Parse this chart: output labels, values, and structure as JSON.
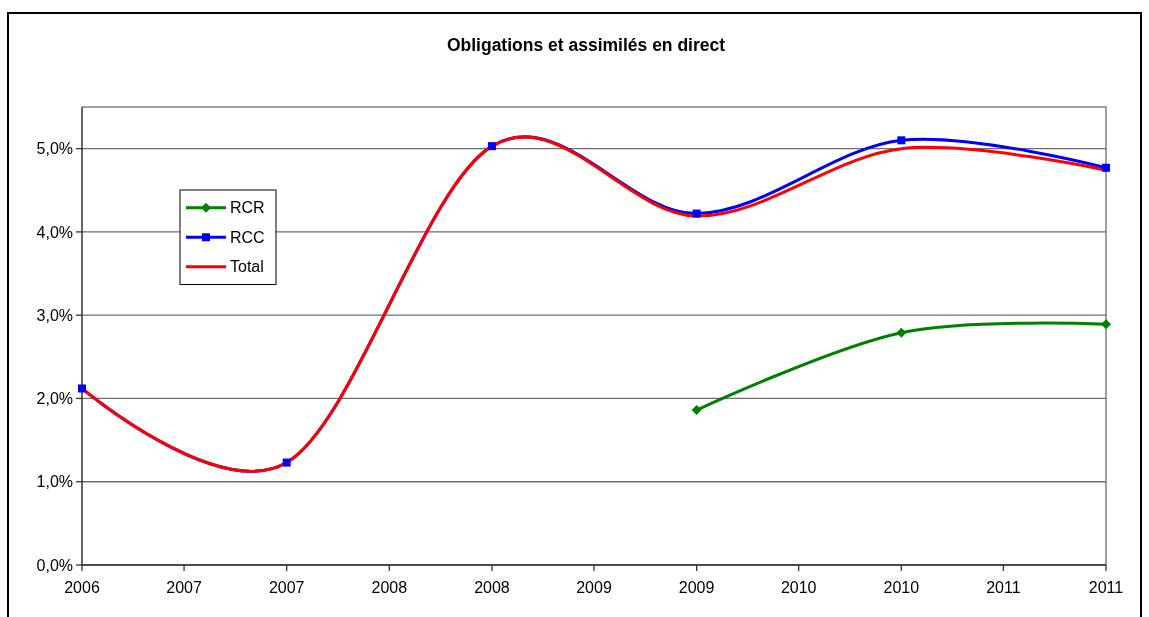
{
  "chart_data": {
    "type": "line",
    "title": "Obligations et assimilés en direct",
    "xlim": [
      "2006-12",
      "2011-12"
    ],
    "xticks": [
      {
        "value": "2006-12",
        "label": "2006"
      },
      {
        "value": "2007-06",
        "label": "2007"
      },
      {
        "value": "2007-12",
        "label": "2007"
      },
      {
        "value": "2008-06",
        "label": "2008"
      },
      {
        "value": "2008-12",
        "label": "2008"
      },
      {
        "value": "2009-06",
        "label": "2009"
      },
      {
        "value": "2009-12",
        "label": "2009"
      },
      {
        "value": "2010-06",
        "label": "2010"
      },
      {
        "value": "2010-12",
        "label": "2010"
      },
      {
        "value": "2011-06",
        "label": "2011"
      },
      {
        "value": "2011-12",
        "label": "2011"
      }
    ],
    "ylim": [
      0,
      5.5
    ],
    "yticks": [
      {
        "value": 0,
        "label": "0,0%"
      },
      {
        "value": 1,
        "label": "1,0%"
      },
      {
        "value": 2,
        "label": "2,0%"
      },
      {
        "value": 3,
        "label": "3,0%"
      },
      {
        "value": 4,
        "label": "4,0%"
      },
      {
        "value": 5,
        "label": "5,0%"
      }
    ],
    "grid": "y",
    "legend": "left",
    "series": [
      {
        "name": "RCR",
        "color": "#008000",
        "marker": "diamond",
        "x": [
          "2009-12",
          "2010-12",
          "2011-12"
        ],
        "values": [
          1.86,
          2.79,
          2.89
        ]
      },
      {
        "name": "RCC",
        "color": "#0000ff",
        "marker": "square",
        "x": [
          "2006-12",
          "2007-12",
          "2008-12",
          "2009-12",
          "2010-12",
          "2011-12"
        ],
        "values": [
          2.12,
          1.23,
          5.03,
          4.22,
          5.1,
          4.77
        ]
      },
      {
        "name": "Total",
        "color": "#ff0000",
        "marker": "none",
        "x": [
          "2006-12",
          "2007-12",
          "2008-12",
          "2009-12",
          "2010-12",
          "2011-12"
        ],
        "values": [
          2.12,
          1.23,
          5.03,
          4.19,
          5.0,
          4.74
        ]
      }
    ]
  }
}
